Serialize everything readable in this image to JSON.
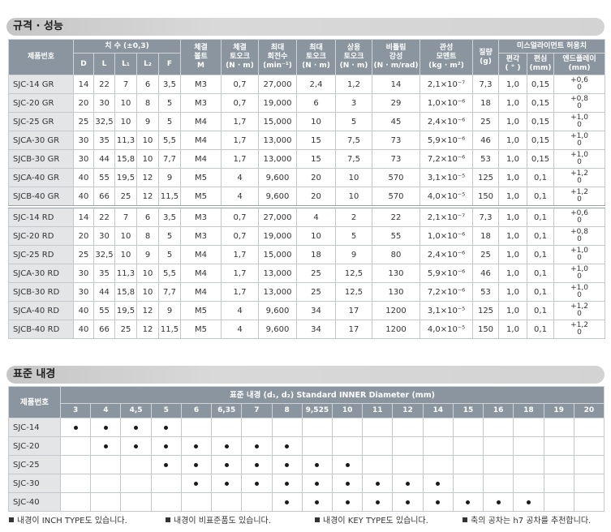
{
  "spec_section": {
    "title": "규격 · 성능",
    "header": {
      "product": "제품번호",
      "dimensions_group": "치 수 (±0,3)",
      "dims": [
        "D",
        "L",
        "L₁",
        "L₂",
        "F"
      ],
      "bolt": [
        "체결",
        "볼트",
        "M"
      ],
      "clamp_torque": [
        "체결",
        "토오크",
        "(N · m)"
      ],
      "max_speed": [
        "최대",
        "회전수",
        "(min⁻¹)"
      ],
      "max_torque": [
        "최대",
        "토오크",
        "(N · m)"
      ],
      "rated_torque": [
        "상용",
        "토오크",
        "(N · m)"
      ],
      "stiffness": [
        "비틀림",
        "강성",
        "(N · m/rad)"
      ],
      "inertia": [
        "관성",
        "모멘트",
        "(kg · m²)"
      ],
      "mass": [
        "질량",
        "(g)"
      ],
      "misalignment_group": "미스얼라이먼트 허용치",
      "angular": [
        "편각",
        "( ° )"
      ],
      "parallel": [
        "편심",
        "(mm)"
      ],
      "endplay": [
        "엔드플레이",
        "(mm)"
      ]
    },
    "groups": [
      {
        "rows": [
          {
            "model": "SJC-14 GR",
            "D": "14",
            "L": "22",
            "L1": "7",
            "L2": "6",
            "F": "3,5",
            "bolt": "M3",
            "clamp_torque": "0,7",
            "max_speed": "27,000",
            "max_torque": "2,4",
            "rated_torque": "1,2",
            "stiffness": "14",
            "inertia": "2,1×10⁻⁷",
            "mass": "7,3",
            "angular": "1,0",
            "parallel": "0,15",
            "endplay": {
              "upper": "+0,6",
              "lower": "0"
            }
          },
          {
            "model": "SJC-20 GR",
            "D": "20",
            "L": "30",
            "L1": "10",
            "L2": "8",
            "F": "5",
            "bolt": "M3",
            "clamp_torque": "0,7",
            "max_speed": "19,000",
            "max_torque": "6",
            "rated_torque": "3",
            "stiffness": "29",
            "inertia": "1,0×10⁻⁶",
            "mass": "18",
            "angular": "1,0",
            "parallel": "0,15",
            "endplay": {
              "upper": "+0,8",
              "lower": "0"
            }
          },
          {
            "model": "SJC-25 GR",
            "D": "25",
            "L": "32,5",
            "L1": "10",
            "L2": "9",
            "F": "5",
            "bolt": "M4",
            "clamp_torque": "1,7",
            "max_speed": "15,000",
            "max_torque": "10",
            "rated_torque": "5",
            "stiffness": "45",
            "inertia": "2,4×10⁻⁶",
            "mass": "25",
            "angular": "1,0",
            "parallel": "0,15",
            "endplay": {
              "upper": "+1,0",
              "lower": "0"
            }
          },
          {
            "model": "SJCA-30 GR",
            "D": "30",
            "L": "35",
            "L1": "11,3",
            "L2": "10",
            "F": "5,5",
            "bolt": "M4",
            "clamp_torque": "1,7",
            "max_speed": "13,000",
            "max_torque": "15",
            "rated_torque": "7,5",
            "stiffness": "73",
            "inertia": "5,9×10⁻⁶",
            "mass": "46",
            "angular": "1,0",
            "parallel": "0,15",
            "endplay": {
              "upper": "+1,0",
              "lower": "0"
            }
          },
          {
            "model": "SJCB-30 GR",
            "D": "30",
            "L": "44",
            "L1": "15,8",
            "L2": "10",
            "F": "7,7",
            "bolt": "M4",
            "clamp_torque": "1,7",
            "max_speed": "13,000",
            "max_torque": "15",
            "rated_torque": "7,5",
            "stiffness": "73",
            "inertia": "7,2×10⁻⁶",
            "mass": "53",
            "angular": "1,0",
            "parallel": "0,15",
            "endplay": {
              "upper": "+1,0",
              "lower": "0"
            }
          },
          {
            "model": "SJCA-40 GR",
            "D": "40",
            "L": "55",
            "L1": "19,5",
            "L2": "12",
            "F": "9",
            "bolt": "M5",
            "clamp_torque": "4",
            "max_speed": "9,600",
            "max_torque": "20",
            "rated_torque": "10",
            "stiffness": "570",
            "inertia": "3,1×10⁻⁵",
            "mass": "125",
            "angular": "1,0",
            "parallel": "0,1",
            "endplay": {
              "upper": "+1,2",
              "lower": "0"
            }
          },
          {
            "model": "SJCB-40 GR",
            "D": "40",
            "L": "66",
            "L1": "25",
            "L2": "12",
            "F": "11,5",
            "bolt": "M5",
            "clamp_torque": "4",
            "max_speed": "9,600",
            "max_torque": "20",
            "rated_torque": "10",
            "stiffness": "570",
            "inertia": "4,0×10⁻⁵",
            "mass": "150",
            "angular": "1,0",
            "parallel": "0,1",
            "endplay": {
              "upper": "+1,2",
              "lower": "0"
            }
          }
        ]
      },
      {
        "rows": [
          {
            "model": "SJC-14 RD",
            "D": "14",
            "L": "22",
            "L1": "7",
            "L2": "6",
            "F": "3,5",
            "bolt": "M3",
            "clamp_torque": "0,7",
            "max_speed": "27,000",
            "max_torque": "4",
            "rated_torque": "2",
            "stiffness": "22",
            "inertia": "2,1×10⁻⁷",
            "mass": "7,3",
            "angular": "1,0",
            "parallel": "0,1",
            "endplay": {
              "upper": "+0,6",
              "lower": "0"
            }
          },
          {
            "model": "SJC-20 RD",
            "D": "20",
            "L": "30",
            "L1": "10",
            "L2": "8",
            "F": "5",
            "bolt": "M3",
            "clamp_torque": "0,7",
            "max_speed": "19,000",
            "max_torque": "10",
            "rated_torque": "5",
            "stiffness": "55",
            "inertia": "1,0×10⁻⁶",
            "mass": "18",
            "angular": "1,0",
            "parallel": "0,1",
            "endplay": {
              "upper": "+0,8",
              "lower": "0"
            }
          },
          {
            "model": "SJC-25 RD",
            "D": "25",
            "L": "32,5",
            "L1": "10",
            "L2": "9",
            "F": "5",
            "bolt": "M4",
            "clamp_torque": "1,7",
            "max_speed": "15,000",
            "max_torque": "18",
            "rated_torque": "9",
            "stiffness": "80",
            "inertia": "2,4×10⁻⁶",
            "mass": "25",
            "angular": "1,0",
            "parallel": "0,1",
            "endplay": {
              "upper": "+1,0",
              "lower": "0"
            }
          },
          {
            "model": "SJCA-30 RD",
            "D": "30",
            "L": "35",
            "L1": "11,3",
            "L2": "10",
            "F": "5,5",
            "bolt": "M4",
            "clamp_torque": "1,7",
            "max_speed": "13,000",
            "max_torque": "25",
            "rated_torque": "12,5",
            "stiffness": "130",
            "inertia": "5,9×10⁻⁶",
            "mass": "46",
            "angular": "1,0",
            "parallel": "0,1",
            "endplay": {
              "upper": "+1,0",
              "lower": "0"
            }
          },
          {
            "model": "SJCB-30 RD",
            "D": "30",
            "L": "44",
            "L1": "15,8",
            "L2": "10",
            "F": "7,7",
            "bolt": "M4",
            "clamp_torque": "1,7",
            "max_speed": "13,000",
            "max_torque": "25",
            "rated_torque": "12,5",
            "stiffness": "130",
            "inertia": "7,2×10⁻⁶",
            "mass": "53",
            "angular": "1,0",
            "parallel": "0,1",
            "endplay": {
              "upper": "+1,0",
              "lower": "0"
            }
          },
          {
            "model": "SJCA-40 RD",
            "D": "40",
            "L": "55",
            "L1": "19,5",
            "L2": "12",
            "F": "9",
            "bolt": "M5",
            "clamp_torque": "4",
            "max_speed": "9,600",
            "max_torque": "34",
            "rated_torque": "17",
            "stiffness": "1200",
            "inertia": "3,1×10⁻⁵",
            "mass": "125",
            "angular": "1,0",
            "parallel": "0,1",
            "endplay": {
              "upper": "+1,2",
              "lower": "0"
            }
          },
          {
            "model": "SJCB-40 RD",
            "D": "40",
            "L": "66",
            "L1": "25",
            "L2": "12",
            "F": "11,5",
            "bolt": "M5",
            "clamp_torque": "4",
            "max_speed": "9,600",
            "max_torque": "34",
            "rated_torque": "17",
            "stiffness": "1200",
            "inertia": "4,0×10⁻⁵",
            "mass": "150",
            "angular": "1,0",
            "parallel": "0,1",
            "endplay": {
              "upper": "+1,2",
              "lower": "0"
            }
          }
        ]
      }
    ]
  },
  "bore_section": {
    "title": "표준 내경",
    "header": {
      "product": "제품번호",
      "group": "표준 내경 (d₁, d₂) Standard INNER Diameter (mm)"
    },
    "sizes": [
      "3",
      "4",
      "4,5",
      "5",
      "6",
      "6,35",
      "7",
      "8",
      "9,525",
      "10",
      "11",
      "12",
      "14",
      "15",
      "16",
      "18",
      "19",
      "20"
    ],
    "rows": [
      {
        "model": "SJC-14",
        "available": [
          true,
          true,
          true,
          true,
          false,
          false,
          false,
          false,
          false,
          false,
          false,
          false,
          false,
          false,
          false,
          false,
          false,
          false
        ]
      },
      {
        "model": "SJC-20",
        "available": [
          false,
          true,
          true,
          true,
          true,
          true,
          true,
          true,
          false,
          false,
          false,
          false,
          false,
          false,
          false,
          false,
          false,
          false
        ]
      },
      {
        "model": "SJC-25",
        "available": [
          false,
          false,
          false,
          true,
          true,
          true,
          true,
          true,
          true,
          true,
          false,
          false,
          false,
          false,
          false,
          false,
          false,
          false
        ]
      },
      {
        "model": "SJC-30",
        "available": [
          false,
          false,
          false,
          false,
          true,
          true,
          true,
          true,
          true,
          true,
          true,
          true,
          true,
          false,
          false,
          false,
          false,
          false
        ]
      },
      {
        "model": "SJC-40",
        "available": [
          false,
          false,
          false,
          false,
          false,
          false,
          false,
          true,
          true,
          true,
          true,
          true,
          true,
          true,
          true,
          true,
          false,
          false
        ]
      }
    ]
  },
  "notes": [
    "내경이 INCH TYPE도 있습니다.",
    "내경이 비표준품도 있습니다.",
    "내경이 KEY TYPE도 있습니다.",
    "축의 공차는 h7 공차를 추천합니다."
  ]
}
